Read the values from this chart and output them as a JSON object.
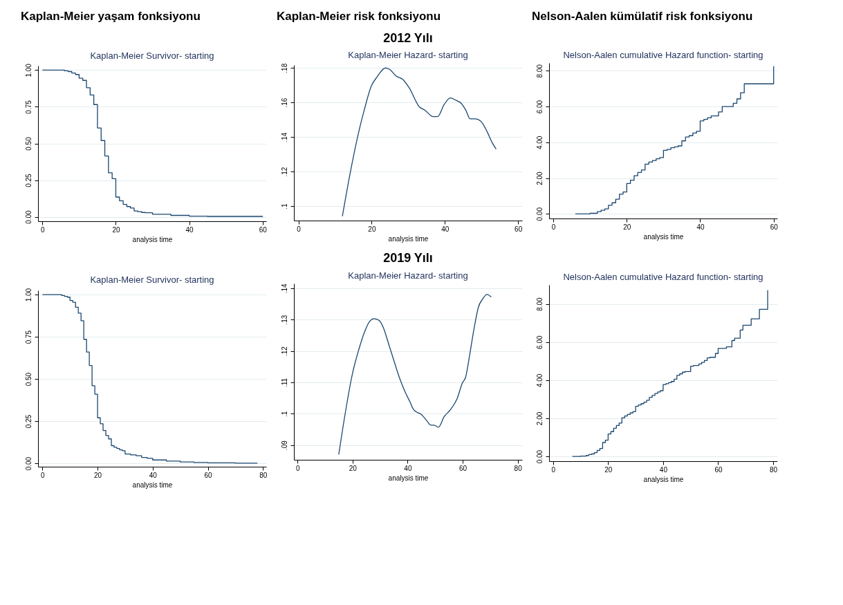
{
  "chart_data": [
    {
      "type": "step",
      "title": "Kaplan-Meier Survivor- starting",
      "xlabel": "analysis time",
      "annotations": [
        "Kaplan-Meier yaşam fonksiyonu"
      ],
      "color": "#1a476f",
      "grid": "y",
      "x": [
        0,
        6,
        7,
        8,
        9,
        10,
        11,
        12,
        13,
        14,
        15,
        16,
        17,
        18,
        19,
        20,
        21,
        22,
        23,
        24,
        25,
        26,
        27,
        28,
        30,
        35,
        40,
        45,
        60
      ],
      "values": [
        1.0,
        0.995,
        0.99,
        0.98,
        0.97,
        0.945,
        0.93,
        0.88,
        0.83,
        0.765,
        0.605,
        0.52,
        0.415,
        0.3,
        0.26,
        0.135,
        0.11,
        0.085,
        0.07,
        0.06,
        0.04,
        0.035,
        0.03,
        0.028,
        0.018,
        0.01,
        0.005,
        0.003,
        0.001
      ],
      "xlim": [
        -1.2,
        61
      ],
      "ylim": [
        -0.03,
        1.03
      ],
      "xticks": [
        0,
        20,
        40,
        60
      ],
      "yticks": [
        {
          "value": 0,
          "label": "0.00"
        },
        {
          "value": 0.25,
          "label": "0.25"
        },
        {
          "value": 0.5,
          "label": "0.50"
        },
        {
          "value": 0.75,
          "label": "0.75"
        },
        {
          "value": 1,
          "label": "1.00"
        }
      ]
    },
    {
      "type": "line",
      "title": "Kaplan-Meier Hazard- starting",
      "xlabel": "analysis time",
      "annotations": [
        "Kaplan-Meier risk fonksiyonu",
        "2012 Yılı"
      ],
      "color": "#1a476f",
      "grid": "y",
      "x": [
        12,
        14.3,
        16.7,
        17.9,
        19.9,
        21.4,
        23.8,
        25,
        26.7,
        28.5,
        30.3,
        33,
        34.5,
        36.8,
        38,
        39.8,
        41.5,
        43,
        44.5,
        45.7,
        46.9,
        48.3,
        49.8,
        51.6,
        53,
        54
      ],
      "values": [
        0.0941,
        0.121,
        0.145,
        0.155,
        0.1695,
        0.1746,
        0.18,
        0.179,
        0.1753,
        0.1734,
        0.1683,
        0.1575,
        0.1556,
        0.1518,
        0.1518,
        0.1588,
        0.1626,
        0.1613,
        0.1594,
        0.1556,
        0.1505,
        0.1505,
        0.1492,
        0.1428,
        0.1364,
        0.133
      ],
      "xlim": [
        -1.24,
        61.1
      ],
      "ylim": [
        0.0916,
        0.1817
      ],
      "xticks": [
        0,
        20,
        40,
        60
      ],
      "yticks": [
        {
          "value": 0.1,
          "label": ".1"
        },
        {
          "value": 0.12,
          "label": ".12"
        },
        {
          "value": 0.14,
          "label": ".14"
        },
        {
          "value": 0.16,
          "label": ".16"
        },
        {
          "value": 0.18,
          "label": ".18"
        }
      ]
    },
    {
      "type": "step",
      "title": "Nelson-Aalen cumulative  Hazard function- starting",
      "xlabel": "analysis time",
      "annotations": [
        "Nelson-Aalen kümülatif risk fonksiyonu"
      ],
      "color": "#1a476f",
      "grid": "y",
      "x": [
        6,
        10,
        12,
        13,
        14,
        15,
        16,
        17,
        18,
        19,
        20,
        21,
        22,
        23,
        24,
        25,
        26,
        27,
        28,
        29,
        30,
        31,
        32,
        33,
        34,
        35,
        36,
        37,
        38,
        39,
        40,
        41,
        42,
        43,
        45,
        46,
        49,
        50,
        51,
        52,
        60
      ],
      "values": [
        0,
        0.03,
        0.12,
        0.2,
        0.28,
        0.48,
        0.62,
        0.82,
        1.1,
        1.22,
        1.7,
        1.88,
        2.13,
        2.32,
        2.45,
        2.78,
        2.9,
        2.98,
        3.08,
        3.15,
        3.55,
        3.6,
        3.7,
        3.75,
        3.8,
        4.08,
        4.3,
        4.37,
        4.52,
        4.62,
        5.2,
        5.28,
        5.37,
        5.48,
        5.7,
        6.0,
        6.18,
        6.43,
        6.77,
        7.27,
        8.26
      ],
      "xlim": [
        -1.15,
        61
      ],
      "ylim": [
        -0.26,
        8.44
      ],
      "xticks": [
        0,
        20,
        40,
        60
      ],
      "yticks": [
        {
          "value": 0,
          "label": "0.00"
        },
        {
          "value": 2,
          "label": "2.00"
        },
        {
          "value": 4,
          "label": "4.00"
        },
        {
          "value": 6,
          "label": "6.00"
        },
        {
          "value": 8,
          "label": "8.00"
        }
      ]
    },
    {
      "type": "step",
      "title": "Kaplan-Meier Survivor- starting",
      "xlabel": "analysis time",
      "color": "#1a476f",
      "grid": "y",
      "x": [
        0,
        7,
        8,
        9,
        10,
        11,
        12,
        13,
        14,
        15,
        16,
        17,
        18,
        19,
        20,
        21,
        22,
        23,
        24,
        25,
        26,
        27,
        28,
        29,
        30,
        32,
        34,
        36,
        38,
        40,
        45,
        50,
        55,
        60,
        70,
        78
      ],
      "values": [
        1.0,
        0.995,
        0.99,
        0.985,
        0.965,
        0.955,
        0.925,
        0.89,
        0.845,
        0.735,
        0.66,
        0.58,
        0.46,
        0.41,
        0.27,
        0.235,
        0.195,
        0.165,
        0.145,
        0.105,
        0.095,
        0.088,
        0.08,
        0.075,
        0.055,
        0.05,
        0.045,
        0.035,
        0.03,
        0.02,
        0.013,
        0.008,
        0.005,
        0.003,
        0.001,
        0.001
      ],
      "xlim": [
        -1.6,
        81.2
      ],
      "ylim": [
        -0.02,
        1.025
      ],
      "xticks": [
        0,
        20,
        40,
        60,
        80
      ],
      "yticks": [
        {
          "value": 0,
          "label": "0.00"
        },
        {
          "value": 0.25,
          "label": "0.25"
        },
        {
          "value": 0.5,
          "label": "0.50"
        },
        {
          "value": 0.75,
          "label": "0.75"
        },
        {
          "value": 1,
          "label": "1.00"
        }
      ]
    },
    {
      "type": "line",
      "title": "Kaplan-Meier Hazard- starting",
      "xlabel": "analysis time",
      "annotations": [
        "2019 Yılı"
      ],
      "color": "#1a476f",
      "grid": "y",
      "x": [
        15,
        17.3,
        20,
        22.3,
        24.3,
        26.2,
        27.8,
        29.7,
        31.2,
        33.2,
        35.1,
        37.1,
        39,
        40.9,
        42.1,
        43.3,
        44.8,
        47.1,
        48.3,
        49.8,
        51.2,
        53.3,
        55.3,
        58,
        59.9,
        61.1,
        62.6,
        64.2,
        65.7,
        67.3,
        68.8,
        70.4
      ],
      "values": [
        0.087,
        0.0999,
        0.1129,
        0.1205,
        0.1259,
        0.1294,
        0.1303,
        0.1297,
        0.1274,
        0.122,
        0.1167,
        0.1113,
        0.1071,
        0.1037,
        0.1014,
        0.1005,
        0.0999,
        0.0976,
        0.0964,
        0.0963,
        0.0957,
        0.0991,
        0.101,
        0.1048,
        0.1098,
        0.1117,
        0.119,
        0.1274,
        0.1339,
        0.1366,
        0.138,
        0.1372
      ],
      "xlim": [
        -1.3,
        81.6
      ],
      "ylim": [
        0.0853,
        0.1415
      ],
      "xticks": [
        0,
        20,
        40,
        60,
        80
      ],
      "yticks": [
        {
          "value": 0.09,
          "label": ".09"
        },
        {
          "value": 0.1,
          "label": ".1"
        },
        {
          "value": 0.11,
          "label": ".11"
        },
        {
          "value": 0.12,
          "label": ".12"
        },
        {
          "value": 0.13,
          "label": ".13"
        },
        {
          "value": 0.14,
          "label": ".14"
        }
      ]
    },
    {
      "type": "step",
      "title": "Nelson-Aalen cumulative  Hazard function- starting",
      "xlabel": "analysis time",
      "color": "#1a476f",
      "grid": "y",
      "x": [
        7,
        10,
        12,
        13,
        14,
        15,
        16,
        17,
        18,
        19,
        20,
        21,
        22,
        23,
        24,
        25,
        26,
        27,
        28,
        29,
        30,
        31,
        32,
        33,
        34,
        35,
        36,
        37,
        38,
        39,
        40,
        41,
        42,
        43,
        44,
        45,
        46,
        47,
        48,
        50,
        51,
        53,
        54,
        55,
        56,
        57,
        59,
        60,
        63,
        65,
        66,
        68,
        69,
        72,
        75,
        78
      ],
      "values": [
        0,
        0.02,
        0.05,
        0.1,
        0.13,
        0.2,
        0.32,
        0.42,
        0.73,
        0.85,
        1.18,
        1.3,
        1.48,
        1.62,
        1.75,
        2.02,
        2.12,
        2.2,
        2.28,
        2.35,
        2.63,
        2.7,
        2.77,
        2.85,
        2.95,
        3.1,
        3.2,
        3.3,
        3.38,
        3.45,
        3.77,
        3.82,
        3.87,
        3.93,
        4.05,
        4.25,
        4.33,
        4.42,
        4.45,
        4.73,
        4.77,
        4.85,
        4.93,
        5.03,
        5.17,
        5.2,
        5.4,
        5.67,
        5.75,
        6.08,
        6.2,
        6.63,
        6.88,
        7.22,
        7.72,
        8.72
      ],
      "xlim": [
        -1.46,
        81.5
      ],
      "ylim": [
        -0.25,
        9.0
      ],
      "xticks": [
        0,
        20,
        40,
        60,
        80
      ],
      "yticks": [
        {
          "value": 0,
          "label": "0.00"
        },
        {
          "value": 2,
          "label": "2.00"
        },
        {
          "value": 4,
          "label": "4.00"
        },
        {
          "value": 6,
          "label": "6.00"
        },
        {
          "value": 8,
          "label": "8.00"
        }
      ]
    }
  ]
}
